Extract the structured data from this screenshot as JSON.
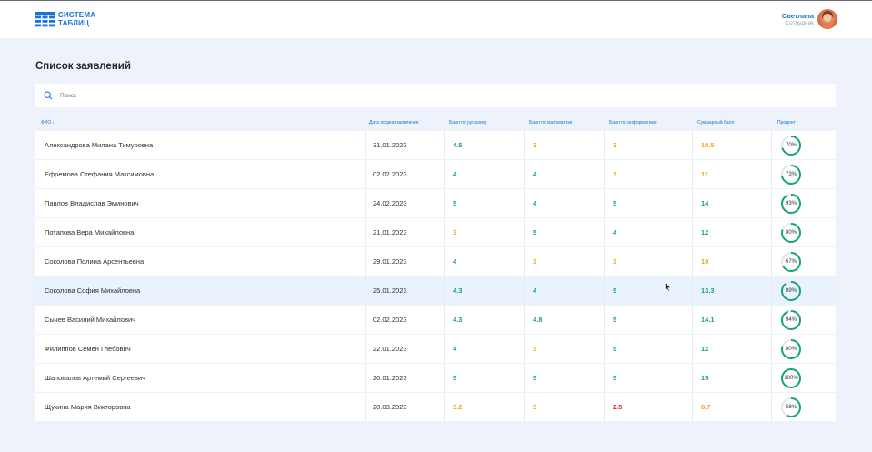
{
  "header": {
    "logo_line1": "СИСТЕМА",
    "logo_line2": "ТАБЛИЦ",
    "user_name": "Светлана",
    "user_role": "Сотрудник"
  },
  "page": {
    "title": "Список заявлений"
  },
  "search": {
    "placeholder": "Поиск",
    "value": ""
  },
  "table": {
    "columns": [
      "ФИО",
      "Дата подачи заявления",
      "Балл по русскому",
      "Балл по математике",
      "Балл по информатике",
      "Суммарный балл",
      "Процент"
    ],
    "sort_indicator": "↓",
    "rows": [
      {
        "name": "Александрова Милана Тимуровна",
        "date": "31.01.2023",
        "rus": "4.5",
        "math": "3",
        "inf": "3",
        "sum": "10.5",
        "pct": "70%",
        "pct_value": 70,
        "colors": [
          "green",
          "orange",
          "orange",
          "orange"
        ]
      },
      {
        "name": "Ефремова Стефания Максимовна",
        "date": "02.02.2023",
        "rus": "4",
        "math": "4",
        "inf": "3",
        "sum": "11",
        "pct": "73%",
        "pct_value": 73,
        "colors": [
          "green",
          "green",
          "orange",
          "orange"
        ]
      },
      {
        "name": "Павлов Владислав Эминович",
        "date": "24.02.2023",
        "rus": "5",
        "math": "4",
        "inf": "5",
        "sum": "14",
        "pct": "93%",
        "pct_value": 93,
        "colors": [
          "green",
          "green",
          "green",
          "green"
        ]
      },
      {
        "name": "Потапова Вера Михайловна",
        "date": "21.01.2023",
        "rus": "3",
        "math": "5",
        "inf": "4",
        "sum": "12",
        "pct": "80%",
        "pct_value": 80,
        "colors": [
          "orange",
          "green",
          "green",
          "green"
        ]
      },
      {
        "name": "Соколова Полина Арсентьевна",
        "date": "29.01.2023",
        "rus": "4",
        "math": "3",
        "inf": "3",
        "sum": "10",
        "pct": "67%",
        "pct_value": 67,
        "colors": [
          "green",
          "orange",
          "orange",
          "orange"
        ]
      },
      {
        "name": "Соколова София Михайловна",
        "date": "25.01.2023",
        "rus": "4.3",
        "math": "4",
        "inf": "5",
        "sum": "13.3",
        "pct": "89%",
        "pct_value": 89,
        "colors": [
          "green",
          "green",
          "green",
          "green"
        ],
        "highlighted": true
      },
      {
        "name": "Сычев Василий Михайлович",
        "date": "02.02.2023",
        "rus": "4.3",
        "math": "4.8",
        "inf": "5",
        "sum": "14.1",
        "pct": "94%",
        "pct_value": 94,
        "colors": [
          "green",
          "green",
          "green",
          "green"
        ]
      },
      {
        "name": "Филиппов Семён Глебович",
        "date": "22.01.2023",
        "rus": "4",
        "math": "3",
        "inf": "5",
        "sum": "12",
        "pct": "80%",
        "pct_value": 80,
        "colors": [
          "green",
          "orange",
          "green",
          "green"
        ]
      },
      {
        "name": "Шаповалов Артемий Сергеевич",
        "date": "20.01.2023",
        "rus": "5",
        "math": "5",
        "inf": "5",
        "sum": "15",
        "pct": "100%",
        "pct_value": 100,
        "colors": [
          "green",
          "green",
          "green",
          "green"
        ]
      },
      {
        "name": "Щукина Мария Викторовна",
        "date": "20.03.2023",
        "rus": "3.2",
        "math": "3",
        "inf": "2.5",
        "sum": "8.7",
        "pct": "58%",
        "pct_value": 58,
        "colors": [
          "orange",
          "orange",
          "red",
          "orange"
        ]
      }
    ]
  },
  "colors": {
    "accent": "#1a73d9",
    "green": "#16a37a",
    "orange": "#f2a516",
    "red": "#e21b1b",
    "ring_track": "#e3e7ee",
    "background": "#eef3fb"
  }
}
